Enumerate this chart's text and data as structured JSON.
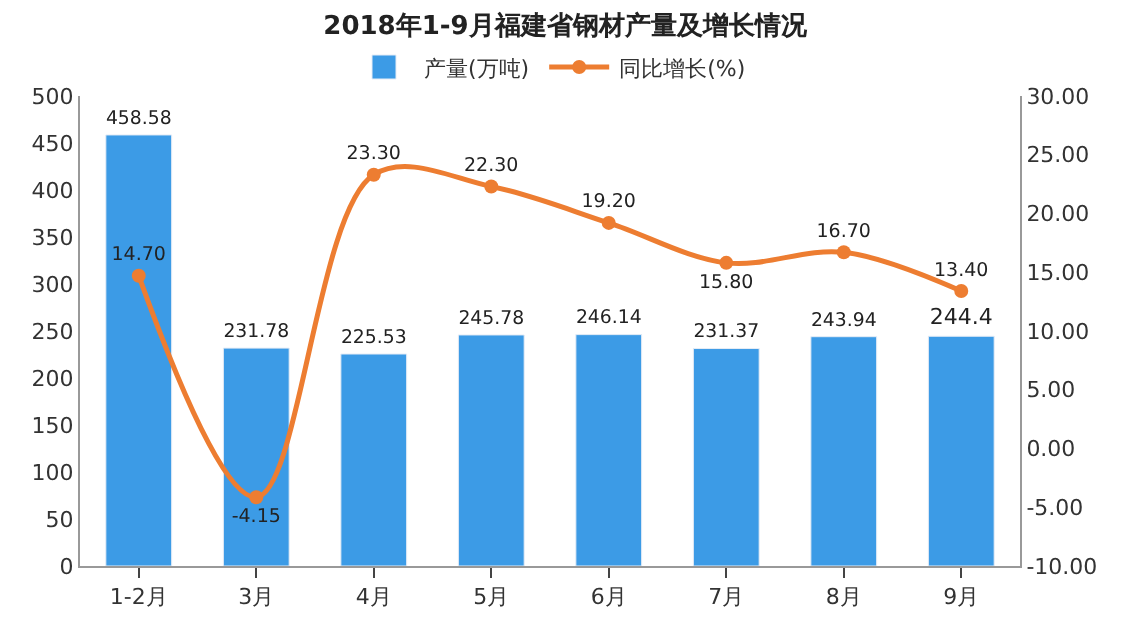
{
  "chart_data": {
    "type": "bar",
    "title": "2018年1-9月福建省钢材产量及增长情况",
    "categories": [
      "1-2月",
      "3月",
      "4月",
      "5月",
      "6月",
      "7月",
      "8月",
      "9月"
    ],
    "series": [
      {
        "name": "产量(万吨)",
        "type": "bar",
        "color": "#3c9be6",
        "values": [
          458.58,
          231.78,
          225.53,
          245.78,
          246.14,
          231.37,
          243.94,
          244.4
        ],
        "value_labels": [
          "458.58",
          "231.78",
          "225.53",
          "245.78",
          "246.14",
          "231.37",
          "243.94",
          "244.4"
        ]
      },
      {
        "name": "同比增长(%)",
        "type": "line",
        "axis": "y2",
        "color": "#ed7d31",
        "marker": "circle",
        "values": [
          14.7,
          -4.15,
          23.3,
          22.3,
          19.2,
          15.8,
          16.7,
          13.4
        ],
        "value_labels": [
          "14.70",
          "-4.15",
          "23.30",
          "22.30",
          "19.20",
          "15.80",
          "16.70",
          "13.40"
        ]
      }
    ],
    "ylim": [
      0,
      500
    ],
    "yticks": [
      0,
      50,
      100,
      150,
      200,
      250,
      300,
      350,
      400,
      450,
      500
    ],
    "y2lim": [
      -10,
      30
    ],
    "y2ticks": [
      {
        "value": -10,
        "label": "-10.00"
      },
      {
        "value": -5,
        "label": "-5.00"
      },
      {
        "value": 0,
        "label": "0.00"
      },
      {
        "value": 5,
        "label": "5.00"
      },
      {
        "value": 10,
        "label": "10.00"
      },
      {
        "value": 15,
        "label": "15.00"
      },
      {
        "value": 20,
        "label": "20.00"
      },
      {
        "value": 25,
        "label": "25.00"
      },
      {
        "value": 30,
        "label": "30.00"
      }
    ],
    "legend": "top"
  }
}
